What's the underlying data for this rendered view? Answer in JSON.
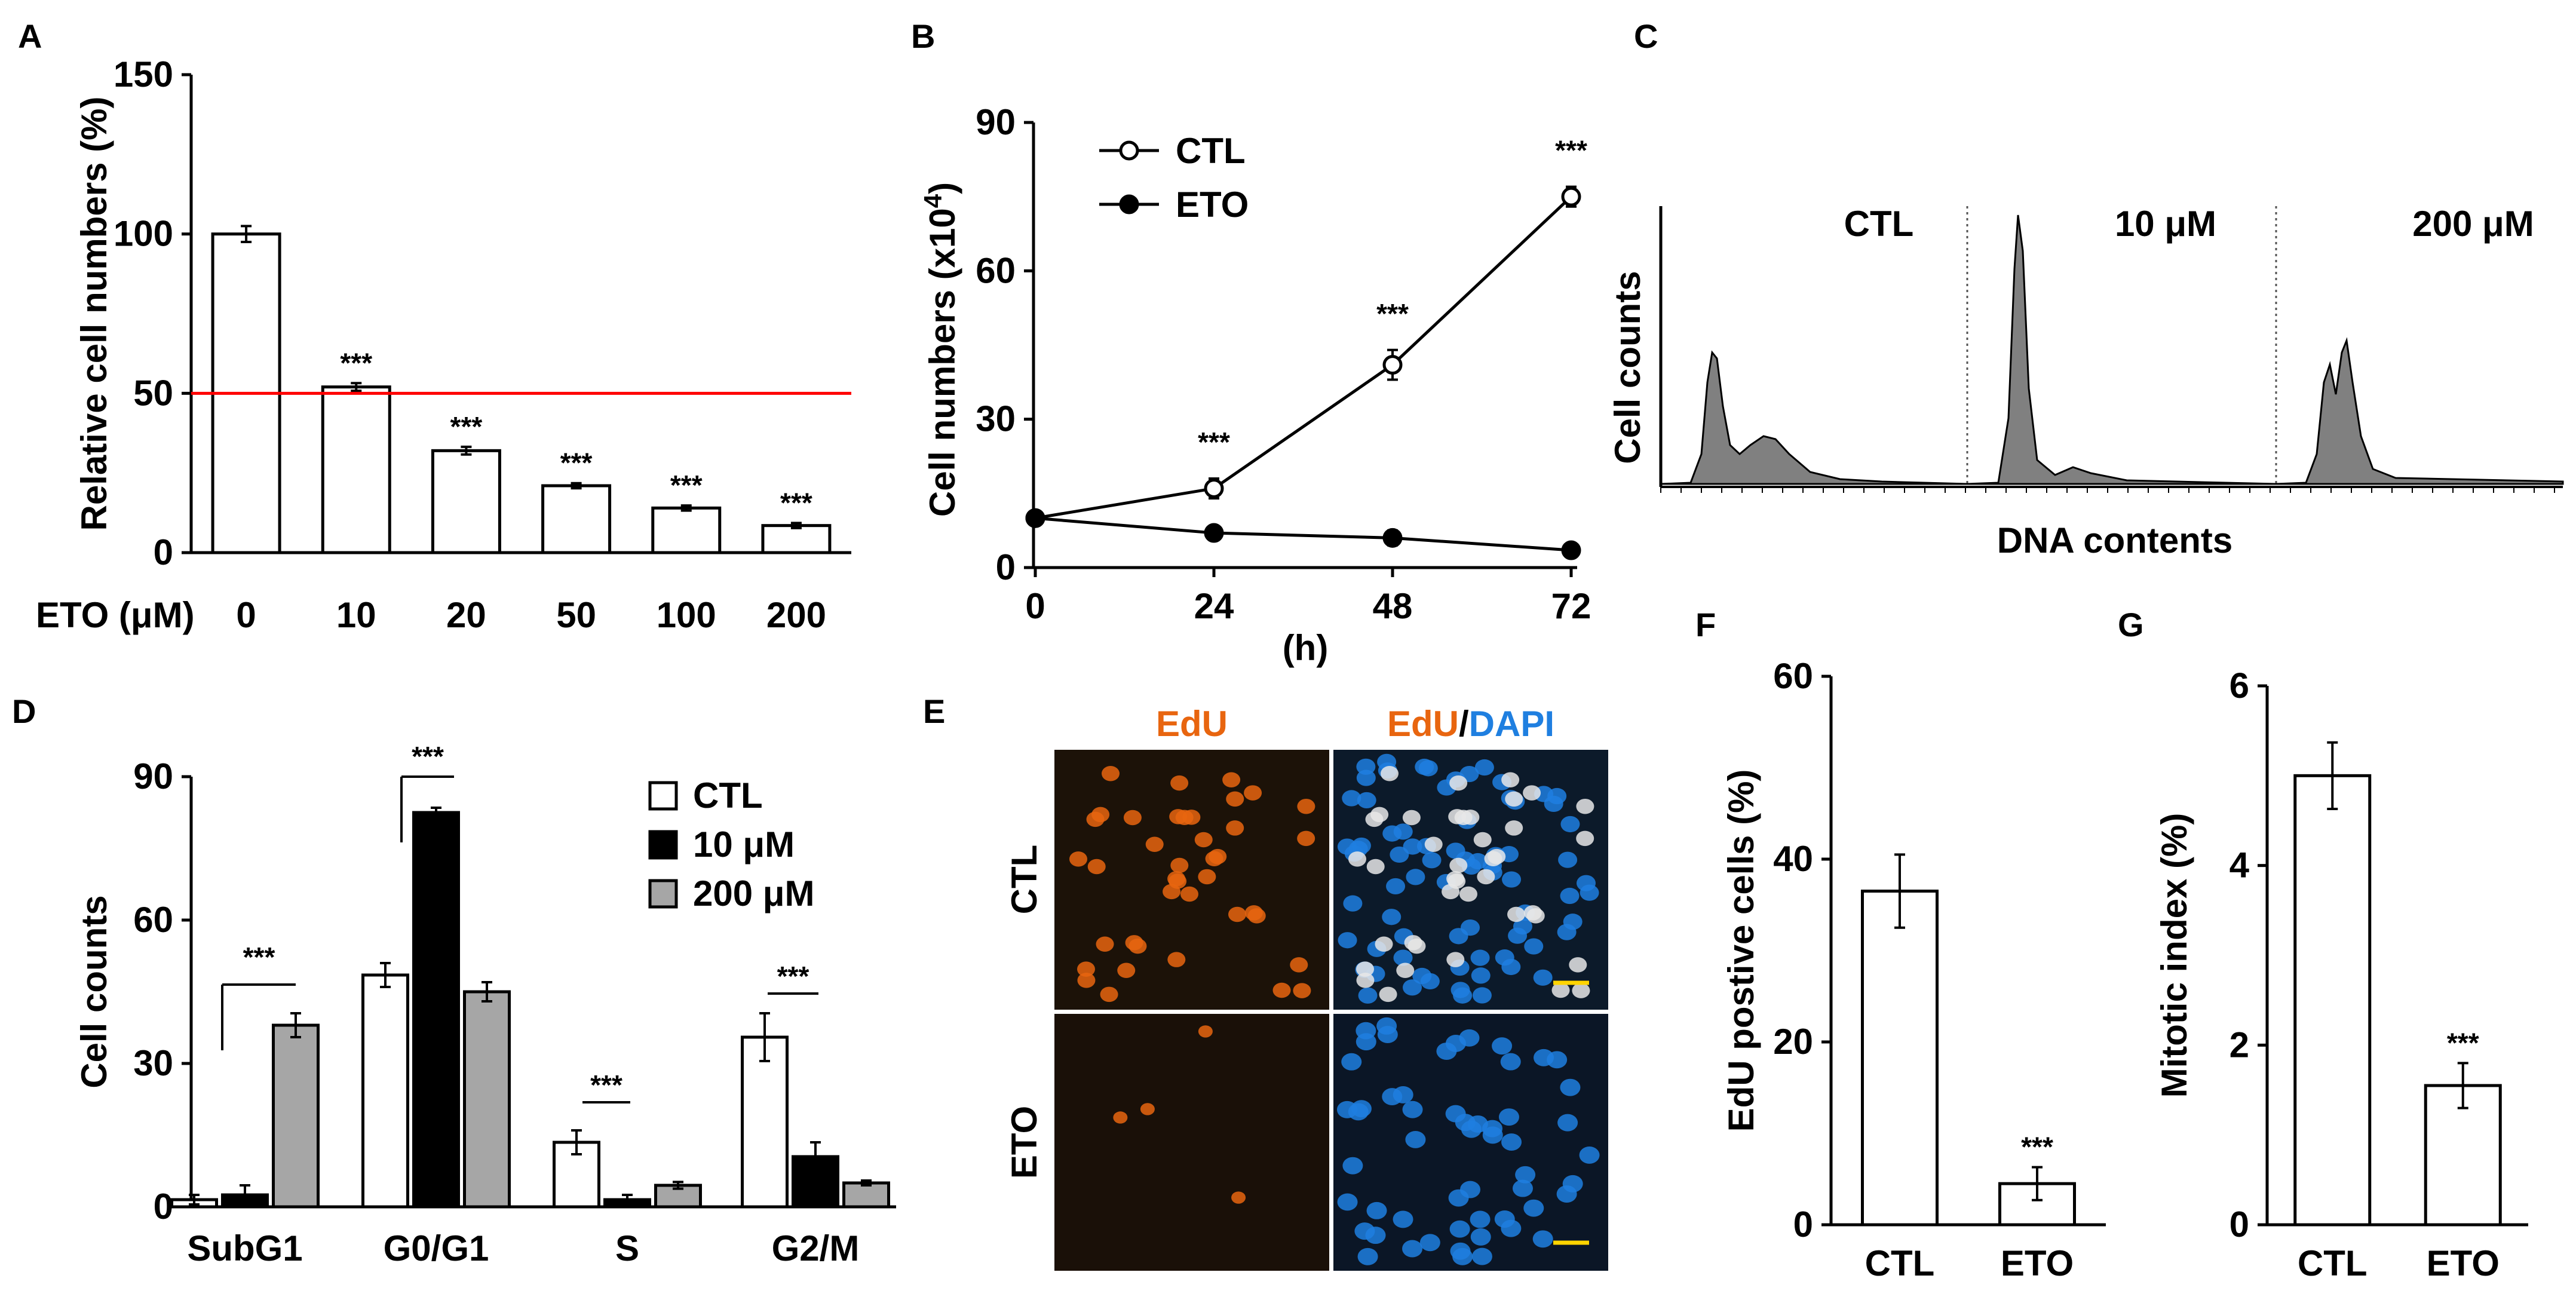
{
  "colors": {
    "bar_ctl": "#ffffff",
    "bar_10": "#000000",
    "bar_200": "#a6a6a6",
    "threshold": "#ff0000",
    "hist_fill": "#808080",
    "edu": "#e8650f",
    "dapi": "#1f7fe0"
  },
  "chart_data": [
    {
      "panel": "A",
      "type": "bar",
      "title": "",
      "xlabel": "ETO (μM)",
      "ylabel": "Relative cell numbers (%)",
      "categories": [
        "0",
        "10",
        "20",
        "50",
        "100",
        "200"
      ],
      "values": [
        100,
        52,
        32,
        21,
        14,
        8.5
      ],
      "errors": [
        2.5,
        1.2,
        1.2,
        0.8,
        0.8,
        0.8
      ],
      "sig": [
        "",
        "***",
        "***",
        "***",
        "***",
        "***"
      ],
      "ylim": [
        0,
        150
      ],
      "yticks": [
        0,
        50,
        100,
        150
      ],
      "threshold": 50
    },
    {
      "panel": "B",
      "type": "line",
      "xlabel": "(h)",
      "ylabel": "Cell numbers (x10",
      "ylabel_sup": "4",
      "ylabel_close": ")",
      "x": [
        0,
        24,
        48,
        72
      ],
      "xlim": [
        0,
        72
      ],
      "ylim": [
        0,
        90
      ],
      "yticks": [
        0,
        30,
        60,
        90
      ],
      "series": [
        {
          "name": "CTL",
          "marker": "open",
          "values": [
            10,
            16,
            41,
            75
          ],
          "errors": [
            0.5,
            2,
            3,
            2
          ]
        },
        {
          "name": "ETO",
          "marker": "filled",
          "values": [
            10,
            7,
            6,
            3.5
          ],
          "errors": [
            0.5,
            0.5,
            1.5,
            0.5
          ]
        }
      ],
      "sig": [
        "",
        "***",
        "***",
        "***"
      ]
    },
    {
      "panel": "C",
      "type": "histogram",
      "xlabel": "DNA contents",
      "ylabel": "Cell counts",
      "subpanels": [
        "CTL",
        "10 μM",
        "200 μM"
      ]
    },
    {
      "panel": "D",
      "type": "bar",
      "xlabel": "",
      "ylabel": "Cell counts",
      "categories": [
        "SubG1",
        "G0/G1",
        "S",
        "G2/M"
      ],
      "ylim": [
        0,
        90
      ],
      "yticks": [
        0,
        30,
        60,
        90
      ],
      "series": [
        {
          "name": "CTL",
          "values": [
            1.5,
            48.5,
            13.5,
            35.5
          ],
          "errors": [
            1,
            2.5,
            2.5,
            5
          ]
        },
        {
          "name": "10 μM",
          "values": [
            2.5,
            82.5,
            1.5,
            10.5
          ],
          "errors": [
            2,
            1,
            1,
            3
          ]
        },
        {
          "name": "200 μM",
          "values": [
            38,
            45,
            4.5,
            5
          ],
          "errors": [
            2.5,
            2,
            0.7,
            0.5
          ]
        }
      ],
      "sig": "***"
    },
    {
      "panel": "E",
      "type": "image-grid",
      "columns": [
        {
          "parts": [
            {
              "text": "EdU",
              "color": "#e8650f"
            }
          ]
        },
        {
          "parts": [
            {
              "text": "EdU",
              "color": "#e8650f"
            },
            {
              "text": "/",
              "color": "#000000"
            },
            {
              "text": "DAPI",
              "color": "#1f7fe0"
            }
          ]
        }
      ],
      "rows": [
        "CTL",
        "ETO"
      ]
    },
    {
      "panel": "F",
      "type": "bar",
      "ylabel": "EdU postive cells (%)",
      "categories": [
        "CTL",
        "ETO"
      ],
      "values": [
        36.5,
        4.5
      ],
      "errors": [
        4,
        1.8
      ],
      "sig": [
        "",
        "***"
      ],
      "ylim": [
        0,
        60
      ],
      "yticks": [
        0,
        20,
        40,
        60
      ]
    },
    {
      "panel": "G",
      "type": "bar",
      "ylabel": "Mitotic index (%)",
      "categories": [
        "CTL",
        "ETO"
      ],
      "values": [
        5.0,
        1.55
      ],
      "errors": [
        0.37,
        0.25
      ],
      "sig": [
        "",
        "***"
      ],
      "ylim": [
        0,
        6
      ],
      "yticks": [
        0,
        2,
        4,
        6
      ]
    }
  ]
}
